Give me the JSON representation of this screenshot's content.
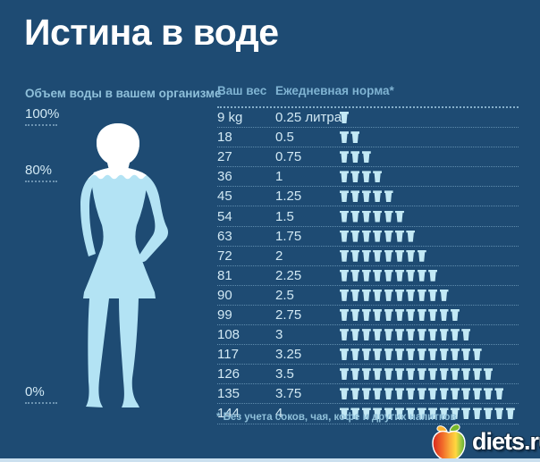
{
  "page": {
    "title": "Истина в воде"
  },
  "left_panel": {
    "heading": "Объем воды в вашем организме",
    "markers": [
      {
        "label": "100%"
      },
      {
        "label": "80%"
      },
      {
        "label": "0%"
      }
    ]
  },
  "table": {
    "col_weight": "Ваш вес",
    "col_norm": "Ежедневная норма*",
    "rows": [
      {
        "weight": "9 kg",
        "norm": "0.25 литра",
        "cups": 1
      },
      {
        "weight": "18",
        "norm": "0.5",
        "cups": 2
      },
      {
        "weight": "27",
        "norm": "0.75",
        "cups": 3
      },
      {
        "weight": "36",
        "norm": "1",
        "cups": 4
      },
      {
        "weight": "45",
        "norm": "1.25",
        "cups": 5
      },
      {
        "weight": "54",
        "norm": "1.5",
        "cups": 6
      },
      {
        "weight": "63",
        "norm": "1.75",
        "cups": 7
      },
      {
        "weight": "72",
        "norm": "2",
        "cups": 8
      },
      {
        "weight": "81",
        "norm": "2.25",
        "cups": 9
      },
      {
        "weight": "90",
        "norm": "2.5",
        "cups": 10
      },
      {
        "weight": "99",
        "norm": "2.75",
        "cups": 11
      },
      {
        "weight": "108",
        "norm": "3",
        "cups": 12
      },
      {
        "weight": "117",
        "norm": "3.25",
        "cups": 13
      },
      {
        "weight": "126",
        "norm": "3.5",
        "cups": 14
      },
      {
        "weight": "135",
        "norm": "3.75",
        "cups": 15
      },
      {
        "weight": "144",
        "norm": "4",
        "cups": 16
      }
    ]
  },
  "footnote": "* Без учета соков, чая, кофе и других напитков",
  "brand": {
    "text": "diets.ru"
  },
  "colors": {
    "background": "#1e4b73",
    "title_text": "#ffffff",
    "muted_blue_text": "#8fc0da",
    "bright_text": "#d2e9f4",
    "water_fill": "#b3e3f4",
    "glass_icon": "#c3e9f5",
    "figure_white": "#ffffff",
    "bottom_strip": "#cbe0ef"
  },
  "chart_data": {
    "type": "table",
    "title": "Истина в воде",
    "subtitle": "Объем воды в вашем организме",
    "columns": [
      "Ваш вес",
      "Ежедневная норма*",
      "стаканы (пиктограммы)"
    ],
    "weights_kg": [
      9,
      18,
      27,
      36,
      45,
      54,
      63,
      72,
      81,
      90,
      99,
      108,
      117,
      126,
      135,
      144
    ],
    "daily_norm_liters": [
      0.25,
      0.5,
      0.75,
      1,
      1.25,
      1.5,
      1.75,
      2,
      2.25,
      2.5,
      2.75,
      3,
      3.25,
      3.5,
      3.75,
      4
    ],
    "glasses_count": [
      1,
      2,
      3,
      4,
      5,
      6,
      7,
      8,
      9,
      10,
      11,
      12,
      13,
      14,
      15,
      16
    ],
    "body_water_percent_markers": [
      100,
      80,
      0
    ],
    "footnote": "* Без учета соков, чая, кофе и других напитков",
    "legend_position": "none",
    "grid": "dotted-row-separators"
  }
}
